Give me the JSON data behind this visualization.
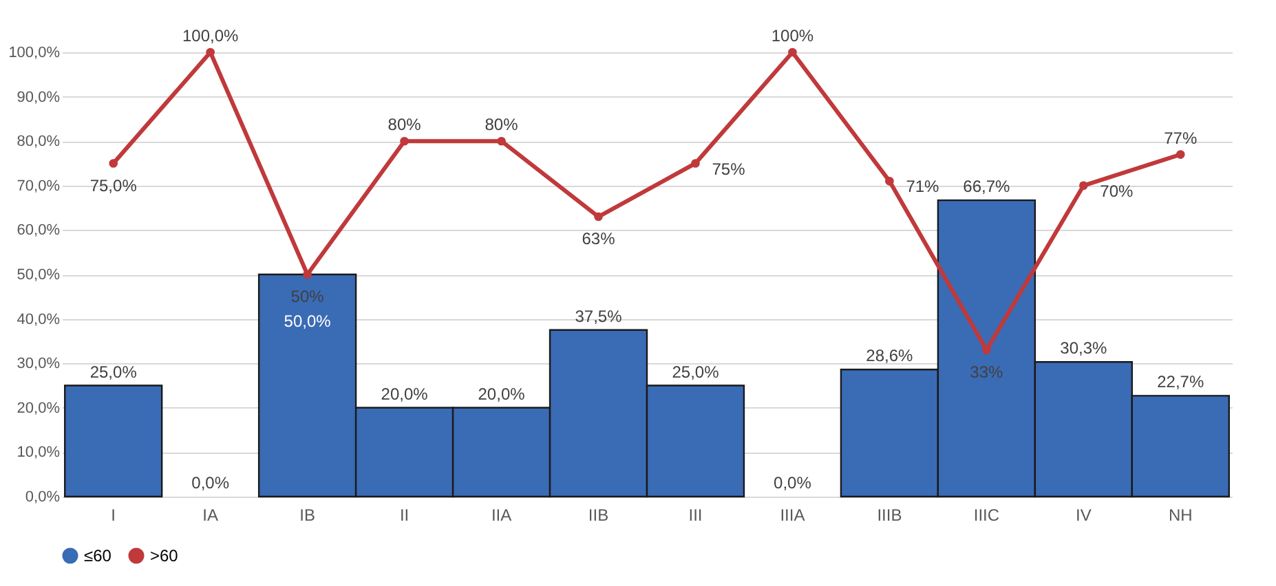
{
  "chart_data": {
    "type": "bar",
    "categories": [
      "I",
      "IA",
      "IB",
      "II",
      "IIA",
      "IIB",
      "III",
      "IIIA",
      "IIIB",
      "IIIC",
      "IV",
      "NH"
    ],
    "series": [
      {
        "name": "≤60",
        "color": "#3a6bb5",
        "values": [
          25.0,
          0.0,
          50.0,
          20.0,
          20.0,
          37.5,
          25.0,
          0.0,
          28.6,
          66.7,
          30.3,
          22.7
        ],
        "value_labels": [
          "25,0%",
          "0,0%",
          "50,0%",
          "20,0%",
          "20,0%",
          "37,5%",
          "25,0%",
          "0,0%",
          "28,6%",
          "66,7%",
          "30,3%",
          "22,7%"
        ]
      },
      {
        "name": ">60",
        "type": "line",
        "color": "#c0393b",
        "values": [
          75.0,
          100.0,
          50,
          80,
          80,
          63,
          75,
          100,
          71,
          33,
          70,
          77
        ],
        "value_labels": [
          "75,0%",
          "100,0%",
          "50%",
          "80%",
          "80%",
          "63%",
          "75%",
          "100%",
          "71%",
          "33%",
          "70%",
          "77%"
        ]
      }
    ],
    "ylim": [
      0,
      100
    ],
    "yticks": [
      {
        "value": 0,
        "label": "0,0%"
      },
      {
        "value": 10,
        "label": "10,0%"
      },
      {
        "value": 20,
        "label": "20,0%"
      },
      {
        "value": 30,
        "label": "30,0%"
      },
      {
        "value": 40,
        "label": "40,0%"
      },
      {
        "value": 50,
        "label": "50,0%"
      },
      {
        "value": 60,
        "label": "60,0%"
      },
      {
        "value": 70,
        "label": "70,0%"
      },
      {
        "value": 80,
        "label": "80,0%"
      },
      {
        "value": 90,
        "label": "90,0%"
      },
      {
        "value": 100,
        "label": "100,0%"
      }
    ],
    "grid": "y",
    "legend": "bottom",
    "marker": "circle",
    "line_style": "solid"
  }
}
